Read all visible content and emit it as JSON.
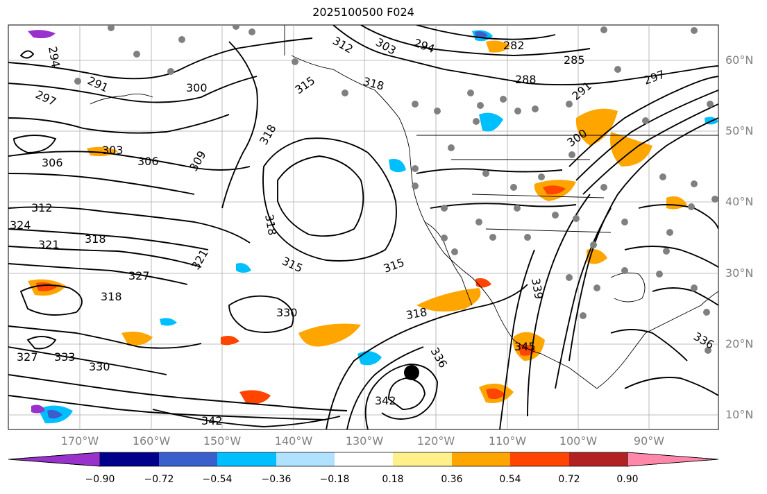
{
  "title": "2025100500 F024",
  "map": {
    "lat_labels": [
      "60°N",
      "50°N",
      "40°N",
      "30°N",
      "20°N",
      "10°N"
    ],
    "lon_labels": [
      "170°W",
      "160°W",
      "150°W",
      "140°W",
      "130°W",
      "120°W",
      "110°W",
      "100°W",
      "90°W"
    ],
    "contour_labels": [
      "294",
      "291",
      "297",
      "300",
      "303",
      "306",
      "306",
      "309",
      "312",
      "315",
      "315",
      "315",
      "318",
      "318",
      "318",
      "318",
      "318",
      "318",
      "321",
      "321",
      "324",
      "327",
      "327",
      "330",
      "330",
      "333",
      "336",
      "336",
      "339",
      "342",
      "342",
      "345",
      "282",
      "285",
      "288",
      "291",
      "297",
      "300",
      "312",
      "303",
      "294"
    ],
    "coastline_color": "#000000",
    "contour_color": "#000000",
    "station_marker_color": "#808080",
    "storm_center_marker": "filled-circle"
  },
  "colorbar": {
    "tick_labels": [
      "−0.90",
      "−0.72",
      "−0.54",
      "−0.36",
      "−0.18",
      "0.18",
      "0.36",
      "0.54",
      "0.72",
      "0.90"
    ],
    "colors": [
      "#9932cc",
      "#00008b",
      "#3a5fcd",
      "#00bfff",
      "#b0e2ff",
      "#ffffff",
      "#fff08c",
      "#ffa500",
      "#ff4500",
      "#b22222",
      "#ff88aa"
    ]
  }
}
